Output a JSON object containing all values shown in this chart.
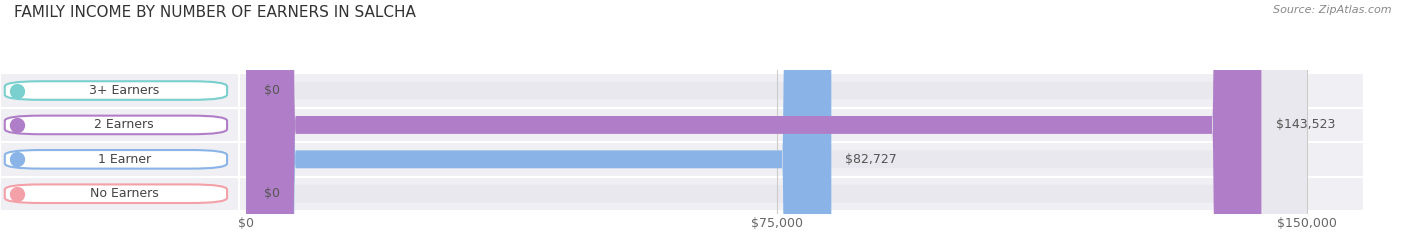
{
  "title": "FAMILY INCOME BY NUMBER OF EARNERS IN SALCHA",
  "source": "Source: ZipAtlas.com",
  "categories": [
    "No Earners",
    "1 Earner",
    "2 Earners",
    "3+ Earners"
  ],
  "values": [
    0,
    82727,
    143523,
    0
  ],
  "bar_colors": [
    "#f4a0a8",
    "#8ab4e8",
    "#b07ec8",
    "#7acfcf"
  ],
  "bg_row_color": "#f0f0f4",
  "bar_bg_color": "#e8e8ee",
  "xlim": [
    0,
    150000
  ],
  "xticks": [
    0,
    75000,
    150000
  ],
  "xtick_labels": [
    "$0",
    "$75,000",
    "$150,000"
  ],
  "title_fontsize": 11,
  "source_fontsize": 8,
  "bar_height": 0.52,
  "label_fontsize": 9,
  "value_fontsize": 9
}
